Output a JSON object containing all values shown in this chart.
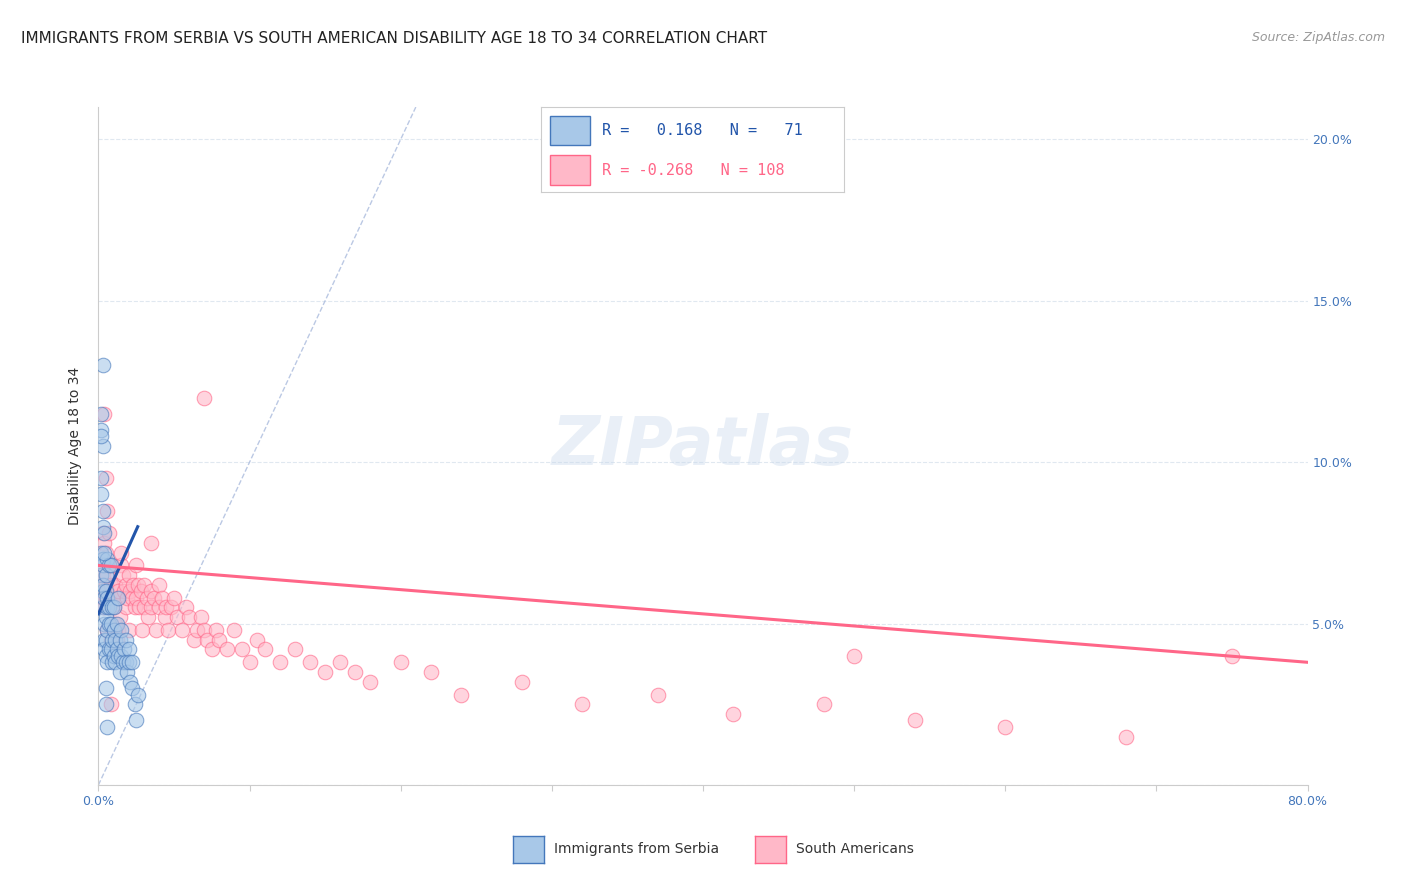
{
  "title": "IMMIGRANTS FROM SERBIA VS SOUTH AMERICAN DISABILITY AGE 18 TO 34 CORRELATION CHART",
  "source": "Source: ZipAtlas.com",
  "ylabel": "Disability Age 18 to 34",
  "xlim": [
    0.0,
    0.8
  ],
  "ylim": [
    0.0,
    0.21
  ],
  "xtick_positions": [
    0.0,
    0.1,
    0.2,
    0.3,
    0.4,
    0.5,
    0.6,
    0.7,
    0.8
  ],
  "xticklabels": [
    "0.0%",
    "",
    "",
    "",
    "",
    "",
    "",
    "",
    "80.0%"
  ],
  "ytick_positions": [
    0.0,
    0.05,
    0.1,
    0.15,
    0.2
  ],
  "yticklabels_right": [
    "",
    "5.0%",
    "10.0%",
    "15.0%",
    "20.0%"
  ],
  "serbia_R": 0.168,
  "serbia_N": 71,
  "south_am_R": -0.268,
  "south_am_N": 108,
  "serbia_fill_color": "#A8C8E8",
  "serbia_edge_color": "#4477BB",
  "south_am_fill_color": "#FFB8C8",
  "south_am_edge_color": "#FF6688",
  "serbia_line_color": "#2255AA",
  "south_am_line_color": "#FF6688",
  "diag_line_color": "#AABBDD",
  "background_color": "#FFFFFF",
  "grid_color": "#E0E8F0",
  "tick_color": "#4477BB",
  "title_fontsize": 11,
  "ylabel_fontsize": 10,
  "tick_fontsize": 9,
  "watermark": "ZIPatlas",
  "serbia_x": [
    0.002,
    0.002,
    0.003,
    0.003,
    0.003,
    0.003,
    0.003,
    0.004,
    0.004,
    0.004,
    0.004,
    0.005,
    0.005,
    0.005,
    0.005,
    0.005,
    0.006,
    0.006,
    0.006,
    0.006,
    0.006,
    0.007,
    0.007,
    0.007,
    0.007,
    0.008,
    0.008,
    0.008,
    0.009,
    0.009,
    0.009,
    0.01,
    0.01,
    0.01,
    0.011,
    0.011,
    0.012,
    0.012,
    0.013,
    0.013,
    0.014,
    0.014,
    0.015,
    0.015,
    0.016,
    0.017,
    0.018,
    0.018,
    0.019,
    0.02,
    0.02,
    0.021,
    0.022,
    0.022,
    0.024,
    0.025,
    0.026,
    0.003,
    0.003,
    0.002,
    0.002,
    0.002,
    0.002,
    0.002,
    0.003,
    0.003,
    0.004,
    0.004,
    0.005,
    0.005,
    0.006
  ],
  "serbia_y": [
    0.065,
    0.072,
    0.06,
    0.055,
    0.068,
    0.07,
    0.062,
    0.058,
    0.05,
    0.045,
    0.042,
    0.06,
    0.045,
    0.04,
    0.052,
    0.065,
    0.055,
    0.048,
    0.038,
    0.07,
    0.058,
    0.05,
    0.042,
    0.068,
    0.055,
    0.05,
    0.042,
    0.068,
    0.055,
    0.045,
    0.038,
    0.048,
    0.04,
    0.055,
    0.045,
    0.038,
    0.042,
    0.05,
    0.04,
    0.058,
    0.045,
    0.035,
    0.048,
    0.04,
    0.038,
    0.042,
    0.045,
    0.038,
    0.035,
    0.042,
    0.038,
    0.032,
    0.038,
    0.03,
    0.025,
    0.02,
    0.028,
    0.13,
    0.105,
    0.115,
    0.11,
    0.108,
    0.095,
    0.09,
    0.085,
    0.08,
    0.078,
    0.072,
    0.025,
    0.03,
    0.018
  ],
  "south_am_x": [
    0.003,
    0.003,
    0.003,
    0.004,
    0.004,
    0.004,
    0.005,
    0.005,
    0.005,
    0.006,
    0.006,
    0.006,
    0.007,
    0.007,
    0.007,
    0.008,
    0.008,
    0.009,
    0.009,
    0.01,
    0.01,
    0.011,
    0.011,
    0.012,
    0.012,
    0.013,
    0.013,
    0.014,
    0.015,
    0.015,
    0.016,
    0.017,
    0.018,
    0.018,
    0.019,
    0.02,
    0.02,
    0.021,
    0.022,
    0.023,
    0.024,
    0.025,
    0.025,
    0.026,
    0.027,
    0.028,
    0.029,
    0.03,
    0.03,
    0.032,
    0.033,
    0.035,
    0.035,
    0.037,
    0.038,
    0.04,
    0.04,
    0.042,
    0.044,
    0.045,
    0.046,
    0.048,
    0.05,
    0.052,
    0.055,
    0.058,
    0.06,
    0.063,
    0.065,
    0.068,
    0.07,
    0.072,
    0.075,
    0.078,
    0.08,
    0.085,
    0.09,
    0.095,
    0.1,
    0.105,
    0.11,
    0.12,
    0.13,
    0.14,
    0.15,
    0.16,
    0.17,
    0.18,
    0.2,
    0.22,
    0.24,
    0.28,
    0.32,
    0.37,
    0.42,
    0.48,
    0.54,
    0.6,
    0.68,
    0.75,
    0.004,
    0.005,
    0.006,
    0.007,
    0.008,
    0.035,
    0.07,
    0.5
  ],
  "south_am_y": [
    0.078,
    0.065,
    0.058,
    0.075,
    0.068,
    0.055,
    0.072,
    0.062,
    0.058,
    0.065,
    0.06,
    0.048,
    0.068,
    0.055,
    0.058,
    0.062,
    0.045,
    0.058,
    0.068,
    0.055,
    0.048,
    0.062,
    0.05,
    0.058,
    0.045,
    0.06,
    0.048,
    0.052,
    0.068,
    0.072,
    0.065,
    0.06,
    0.055,
    0.062,
    0.058,
    0.065,
    0.048,
    0.06,
    0.058,
    0.062,
    0.055,
    0.058,
    0.068,
    0.062,
    0.055,
    0.06,
    0.048,
    0.062,
    0.055,
    0.058,
    0.052,
    0.06,
    0.055,
    0.058,
    0.048,
    0.055,
    0.062,
    0.058,
    0.052,
    0.055,
    0.048,
    0.055,
    0.058,
    0.052,
    0.048,
    0.055,
    0.052,
    0.045,
    0.048,
    0.052,
    0.048,
    0.045,
    0.042,
    0.048,
    0.045,
    0.042,
    0.048,
    0.042,
    0.038,
    0.045,
    0.042,
    0.038,
    0.042,
    0.038,
    0.035,
    0.038,
    0.035,
    0.032,
    0.038,
    0.035,
    0.028,
    0.032,
    0.025,
    0.028,
    0.022,
    0.025,
    0.02,
    0.018,
    0.015,
    0.04,
    0.115,
    0.095,
    0.085,
    0.078,
    0.025,
    0.075,
    0.12,
    0.04
  ],
  "serbia_line_x": [
    0.0,
    0.026
  ],
  "serbia_line_y": [
    0.053,
    0.08
  ],
  "south_am_line_x": [
    0.0,
    0.8
  ],
  "south_am_line_y": [
    0.068,
    0.038
  ],
  "diag_line_x": [
    0.0,
    0.21
  ],
  "diag_line_y": [
    0.0,
    0.21
  ]
}
